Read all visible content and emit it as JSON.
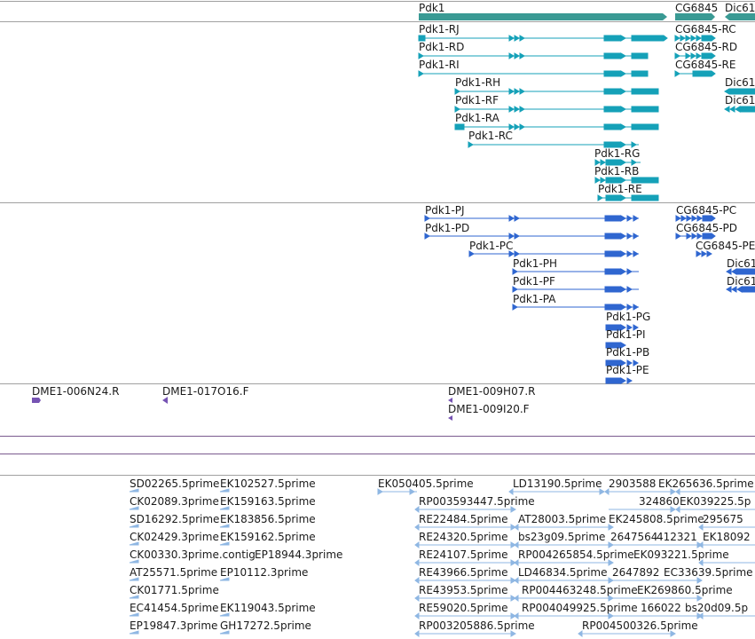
{
  "colors": {
    "gene": "#3a9a94",
    "transcript": "#15a1b8",
    "protein": "#2f66d0",
    "clone": "#7653b3",
    "est": "#8fb7e3",
    "separator": "#a0a0a0",
    "purple_separator": "#7a5a8e"
  },
  "gene_track": {
    "genes": [
      "Pdk1",
      "CG6845",
      "Dic61"
    ]
  },
  "transcript_track": {
    "labels": [
      "Pdk1-RJ",
      "Pdk1-RD",
      "Pdk1-RI",
      "Pdk1-RH",
      "Pdk1-RF",
      "Pdk1-RA",
      "Pdk1-RC",
      "Pdk1-RG",
      "Pdk1-RB",
      "Pdk1-RE",
      "CG6845-RC",
      "CG6845-RD",
      "CG6845-RE",
      "Dic61",
      "Dic61"
    ]
  },
  "protein_track": {
    "labels": [
      "Pdk1-PJ",
      "Pdk1-PD",
      "Pdk1-PC",
      "Pdk1-PH",
      "Pdk1-PF",
      "Pdk1-PA",
      "Pdk1-PG",
      "Pdk1-PI",
      "Pdk1-PB",
      "Pdk1-PE",
      "CG6845-PC",
      "CG6845-PD",
      "CG6845-PE",
      "Dic61",
      "Dic61"
    ]
  },
  "clone_track": {
    "labels": [
      "DME1-006N24.R",
      "DME1-017O16.F",
      "DME1-009H07.R",
      "DME1-009I20.F"
    ]
  },
  "est_track": {
    "labels": [
      "SD02265.5prime",
      "EK102527.5prime",
      "EK050405.5prime",
      "LD13190.5prime",
      "2903588",
      "EK265636.5prime",
      "CK02089.3prime",
      "EK159163.5prime",
      "RP003593447.5prime",
      "324860",
      "EK039225.5p",
      "SD16292.5prime",
      "EK183856.5prime",
      "RE22484.5prime",
      "AT28003.5prime",
      "EK245808.5prime",
      "295675",
      "CK02429.3prime",
      "EK159162.5prime",
      "RE24320.5prime",
      "bs23g09.5prime",
      "2647564",
      "412321",
      "EK18092",
      "CK00330.3prime.contig",
      "EP18944.3prime",
      "RE24107.5prime",
      "RP004265854.5prime",
      "EK093221.5prime",
      "AT25571.5prime",
      "EP10112.3prime",
      "RE43966.5prime",
      "LD46834.5prime",
      "2647892",
      "EC33639.5prime",
      "CK01771.5prime",
      "RE43953.5prime",
      "RP004463248.5prime",
      "EK269860.5prime",
      "EC41454.5prime",
      "EK119043.5prime",
      "RE59020.5prime",
      "RP004049925.5prime",
      "166022",
      "bs20d09.5p",
      "EP19847.3prime",
      "GH17272.5prime",
      "RP003205886.5prime",
      "RP004500326.5prime"
    ]
  }
}
